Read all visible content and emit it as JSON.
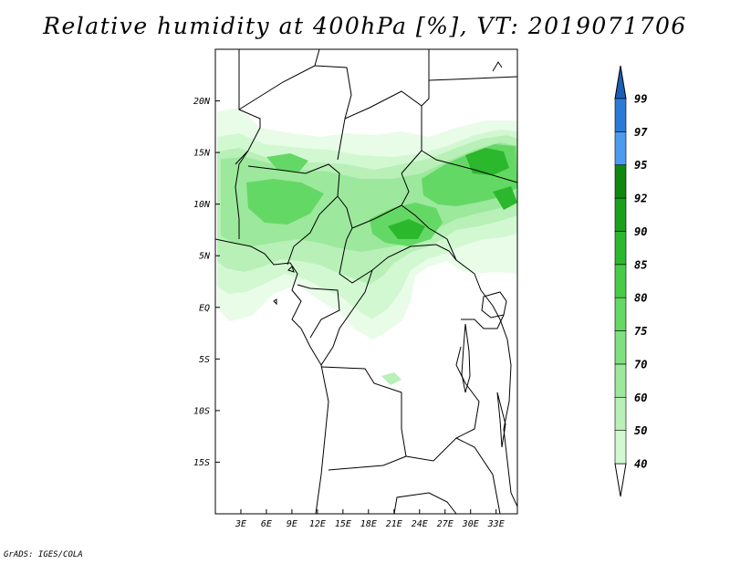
{
  "title": "Relative humidity at 400hPa [%], VT: 2019071706",
  "credit": "GrADS: IGES/COLA",
  "map": {
    "lon_range": [
      0,
      35.5
    ],
    "lat_range": [
      -20,
      25
    ],
    "lat_labels": [
      {
        "lat": 20,
        "text": "20N"
      },
      {
        "lat": 15,
        "text": "15N"
      },
      {
        "lat": 10,
        "text": "10N"
      },
      {
        "lat": 5,
        "text": "5N"
      },
      {
        "lat": 0,
        "text": "EQ"
      },
      {
        "lat": -5,
        "text": "5S"
      },
      {
        "lat": -10,
        "text": "10S"
      },
      {
        "lat": -15,
        "text": "15S"
      }
    ],
    "lon_labels": [
      {
        "lon": 3,
        "text": "3E"
      },
      {
        "lon": 6,
        "text": "6E"
      },
      {
        "lon": 9,
        "text": "9E"
      },
      {
        "lon": 12,
        "text": "12E"
      },
      {
        "lon": 15,
        "text": "15E"
      },
      {
        "lon": 18,
        "text": "18E"
      },
      {
        "lon": 21,
        "text": "21E"
      },
      {
        "lon": 24,
        "text": "24E"
      },
      {
        "lon": 27,
        "text": "27E"
      },
      {
        "lon": 30,
        "text": "30E"
      },
      {
        "lon": 33,
        "text": "33E"
      }
    ]
  },
  "colorbar": {
    "levels": [
      "40",
      "50",
      "60",
      "70",
      "75",
      "80",
      "85",
      "90",
      "92",
      "95",
      "97",
      "99"
    ],
    "colors": [
      "#e8fce8",
      "#d2f8d2",
      "#b8f0b8",
      "#9ce89c",
      "#80e080",
      "#64d864",
      "#48cc48",
      "#2cb82c",
      "#1aa01a",
      "#108810",
      "#4c9ced",
      "#2a7ad8",
      "#1458b8"
    ],
    "under_color": "#ffffff",
    "over_color": "#1a5fb4"
  }
}
